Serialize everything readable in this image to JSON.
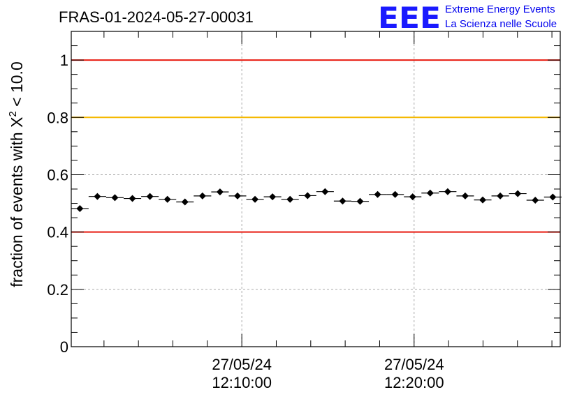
{
  "chart_data": {
    "type": "scatter",
    "title": "FRAS-01-2024-05-27-00031",
    "ylabel": {
      "prefix": "fraction of events with ",
      "symbol": "X",
      "sup": "2",
      "suffix": " < 10.0"
    },
    "ylim": [
      0,
      1.1
    ],
    "yticks": [
      {
        "v": 0,
        "label": "0"
      },
      {
        "v": 0.2,
        "label": "0.2"
      },
      {
        "v": 0.4,
        "label": "0.4"
      },
      {
        "v": 0.6,
        "label": "0.6"
      },
      {
        "v": 0.8,
        "label": "0.8"
      },
      {
        "v": 1,
        "label": "1"
      }
    ],
    "xlim": [
      "12:00:06",
      "12:28:29"
    ],
    "xticks": [
      {
        "t": "12:10:00",
        "label_date": "27/05/24",
        "label_time": "12:10:00"
      },
      {
        "t": "12:20:00",
        "label_date": "27/05/24",
        "label_time": "12:20:00"
      }
    ],
    "grid": true,
    "reference_lines": [
      {
        "y": 1.0,
        "color": "#e8190e"
      },
      {
        "y": 0.8,
        "color": "#f5b800"
      },
      {
        "y": 0.4,
        "color": "#e8190e"
      }
    ],
    "series": [
      {
        "marker": "diamond",
        "color": "#000000",
        "bin_width_seconds": 61,
        "x": [
          "12:00:36",
          "12:01:37",
          "12:02:38",
          "12:03:39",
          "12:04:40",
          "12:05:41",
          "12:06:42",
          "12:07:43",
          "12:08:44",
          "12:09:45",
          "12:10:46",
          "12:11:47",
          "12:12:48",
          "12:13:49",
          "12:14:50",
          "12:15:51",
          "12:16:52",
          "12:17:53",
          "12:18:54",
          "12:19:55",
          "12:20:56",
          "12:21:57",
          "12:22:58",
          "12:23:59",
          "12:25:00",
          "12:26:01",
          "12:27:02",
          "12:28:03"
        ],
        "y": [
          0.482,
          0.524,
          0.52,
          0.517,
          0.524,
          0.514,
          0.505,
          0.526,
          0.54,
          0.526,
          0.514,
          0.523,
          0.514,
          0.527,
          0.541,
          0.508,
          0.507,
          0.531,
          0.531,
          0.523,
          0.536,
          0.541,
          0.526,
          0.512,
          0.526,
          0.534,
          0.511,
          0.522
        ],
        "yerr": 0.01
      }
    ]
  },
  "logo": {
    "mark": "EEE",
    "line1": "Extreme Energy Events",
    "line2": "La Scienza nelle Scuole",
    "color": "#1a1aff"
  }
}
